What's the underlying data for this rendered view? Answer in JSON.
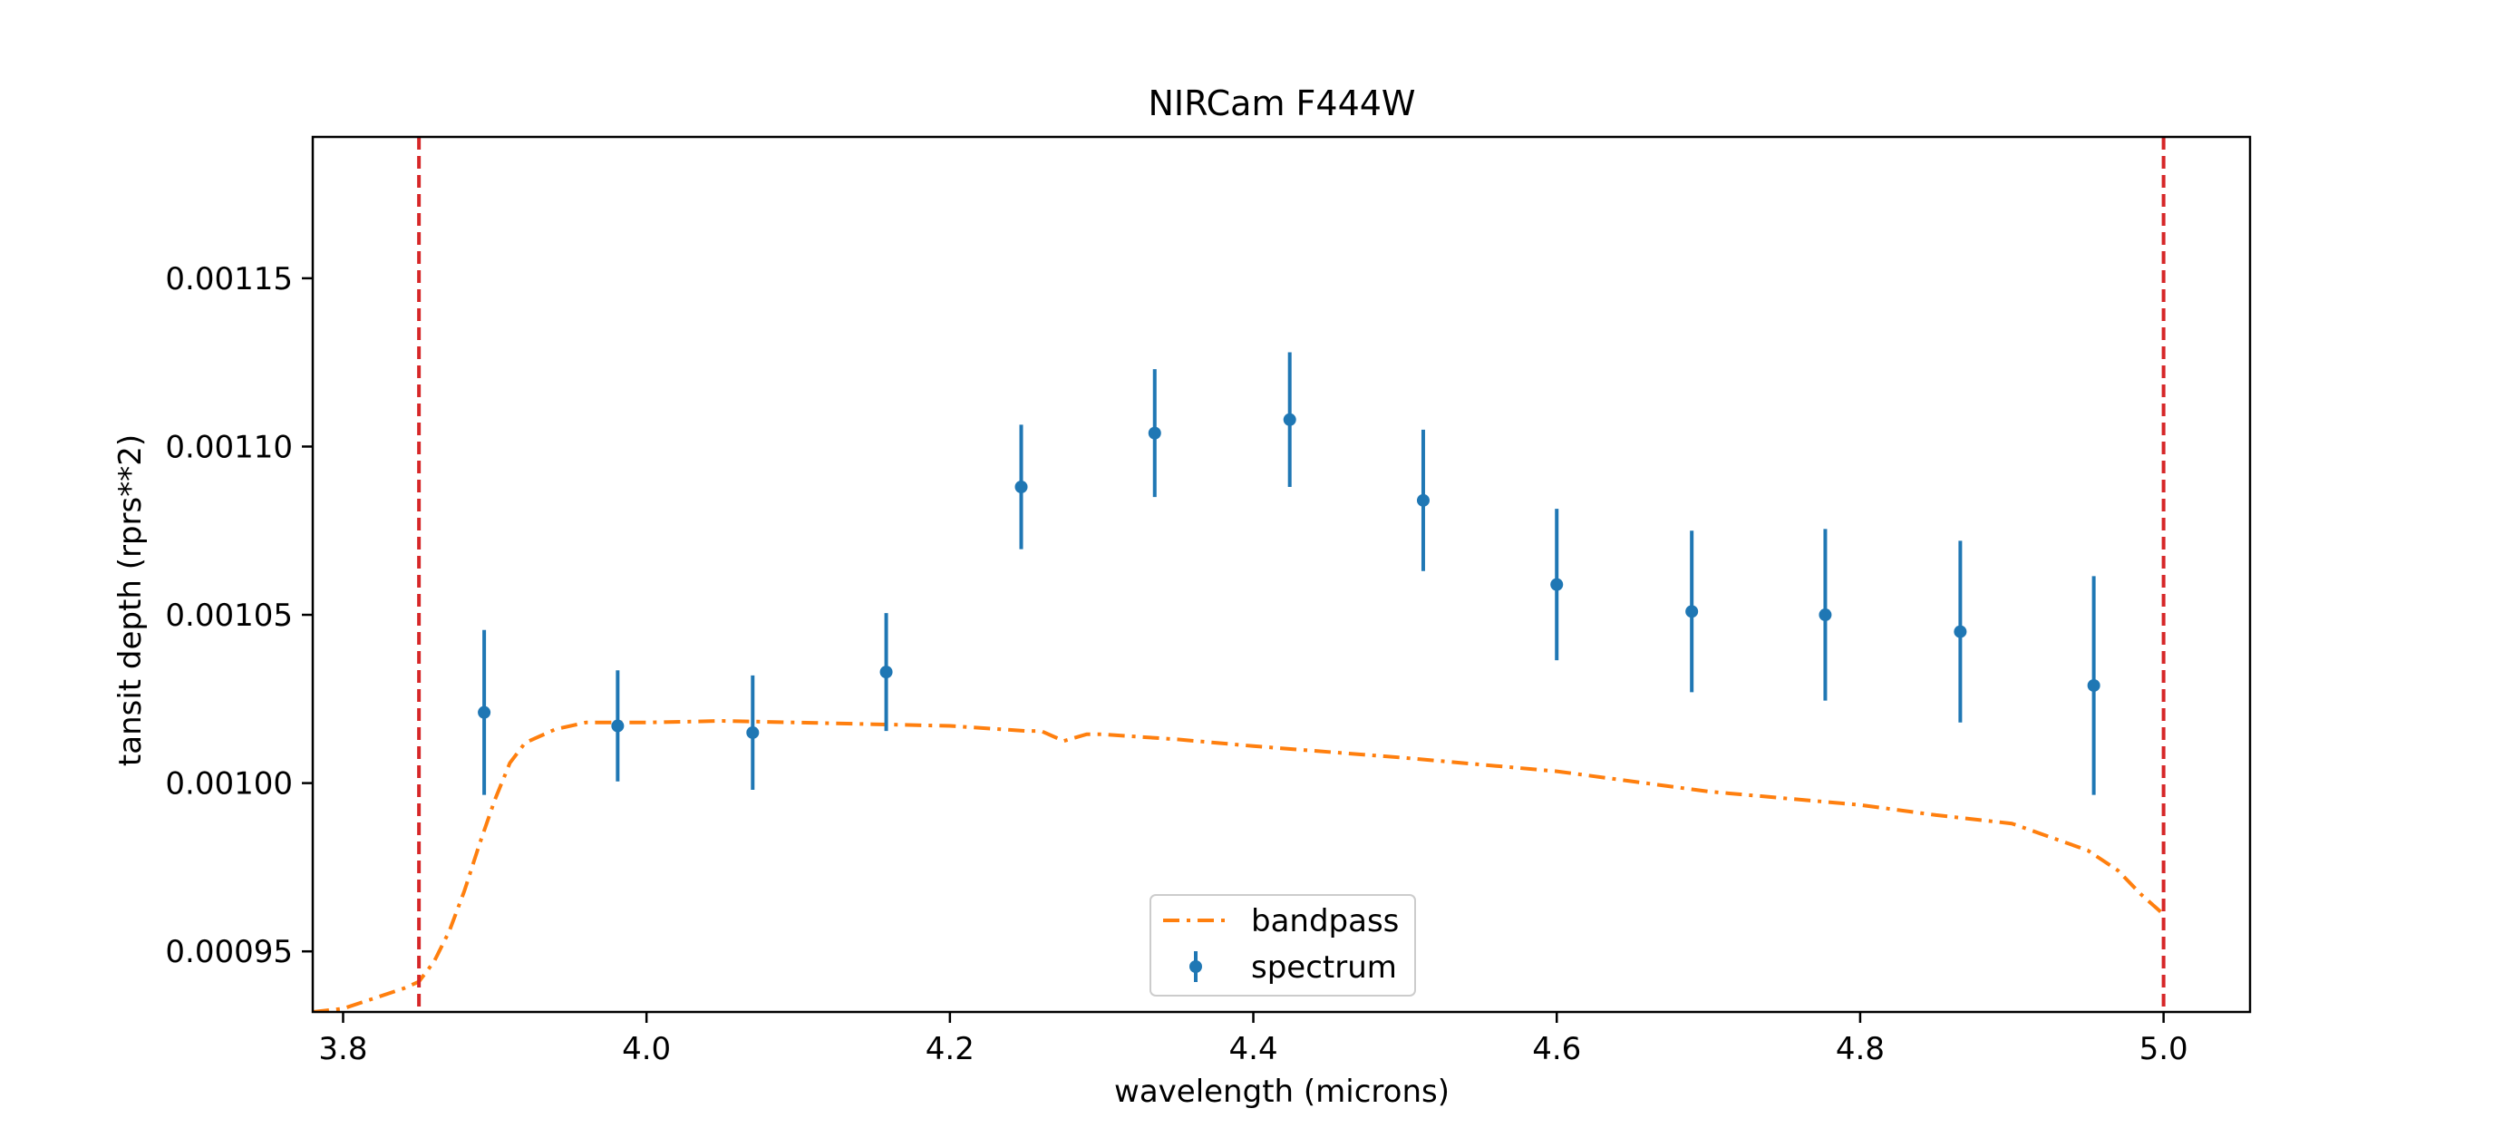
{
  "chart_data": {
    "type": "scatter",
    "title": "NIRCam F444W",
    "xlabel": "wavelength (microns)",
    "ylabel": "tansit depth (rprs**2)",
    "xlim": [
      3.78,
      5.057
    ],
    "ylim": [
      0.000932,
      0.001192
    ],
    "xticks": [
      {
        "value": 3.8,
        "label": "3.8"
      },
      {
        "value": 4.0,
        "label": "4.0"
      },
      {
        "value": 4.2,
        "label": "4.2"
      },
      {
        "value": 4.4,
        "label": "4.4"
      },
      {
        "value": 4.6,
        "label": "4.6"
      },
      {
        "value": 4.8,
        "label": "4.8"
      },
      {
        "value": 5.0,
        "label": "5.0"
      }
    ],
    "yticks": [
      {
        "value": 0.00095,
        "label": "0.00095"
      },
      {
        "value": 0.001,
        "label": "0.00100"
      },
      {
        "value": 0.00105,
        "label": "0.00105"
      },
      {
        "value": 0.0011,
        "label": "0.00110"
      },
      {
        "value": 0.00115,
        "label": "0.00115"
      }
    ],
    "grid": false,
    "legend_position": "lower center",
    "vlines": [
      {
        "x": 3.85,
        "color": "#d62728",
        "style": "dashed"
      },
      {
        "x": 5.0,
        "color": "#d62728",
        "style": "dashed"
      }
    ],
    "series": [
      {
        "name": "bandpass",
        "kind": "line",
        "style": "dashdot",
        "color": "#ff7f0e",
        "x": [
          3.78,
          3.8,
          3.82,
          3.84,
          3.85,
          3.86,
          3.87,
          3.88,
          3.89,
          3.9,
          3.91,
          3.92,
          3.94,
          3.96,
          4.0,
          4.05,
          4.1,
          4.15,
          4.2,
          4.25,
          4.26,
          4.275,
          4.29,
          4.3,
          4.35,
          4.4,
          4.5,
          4.6,
          4.7,
          4.8,
          4.85,
          4.9,
          4.95,
          4.97,
          4.985,
          5.0
        ],
        "y": [
          0.000932,
          0.000933,
          0.000936,
          0.000939,
          0.000941,
          0.000947,
          0.000956,
          0.000968,
          0.000982,
          0.000995,
          0.001006,
          0.001012,
          0.001016,
          0.001018,
          0.001018,
          0.0010185,
          0.001018,
          0.0010175,
          0.001017,
          0.0010155,
          0.0010155,
          0.0010125,
          0.0010145,
          0.0010145,
          0.001013,
          0.001011,
          0.0010075,
          0.0010035,
          0.0009975,
          0.0009935,
          0.0009905,
          0.000988,
          0.00098,
          0.000974,
          0.000967,
          0.000961
        ]
      },
      {
        "name": "spectrum",
        "kind": "errorbar",
        "color": "#1f77b4",
        "x": [
          3.893,
          3.981,
          4.07,
          4.158,
          4.247,
          4.335,
          4.424,
          4.512,
          4.6,
          4.689,
          4.777,
          4.866,
          4.954
        ],
        "y": [
          0.001021,
          0.001017,
          0.001015,
          0.001033,
          0.001088,
          0.001104,
          0.001108,
          0.001084,
          0.001059,
          0.001051,
          0.00105,
          0.001045,
          0.001029
        ],
        "yerr": [
          2.45e-05,
          1.65e-05,
          1.7e-05,
          1.75e-05,
          1.85e-05,
          1.9e-05,
          2e-05,
          2.1e-05,
          2.25e-05,
          2.4e-05,
          2.55e-05,
          2.7e-05,
          3.25e-05
        ]
      }
    ]
  }
}
